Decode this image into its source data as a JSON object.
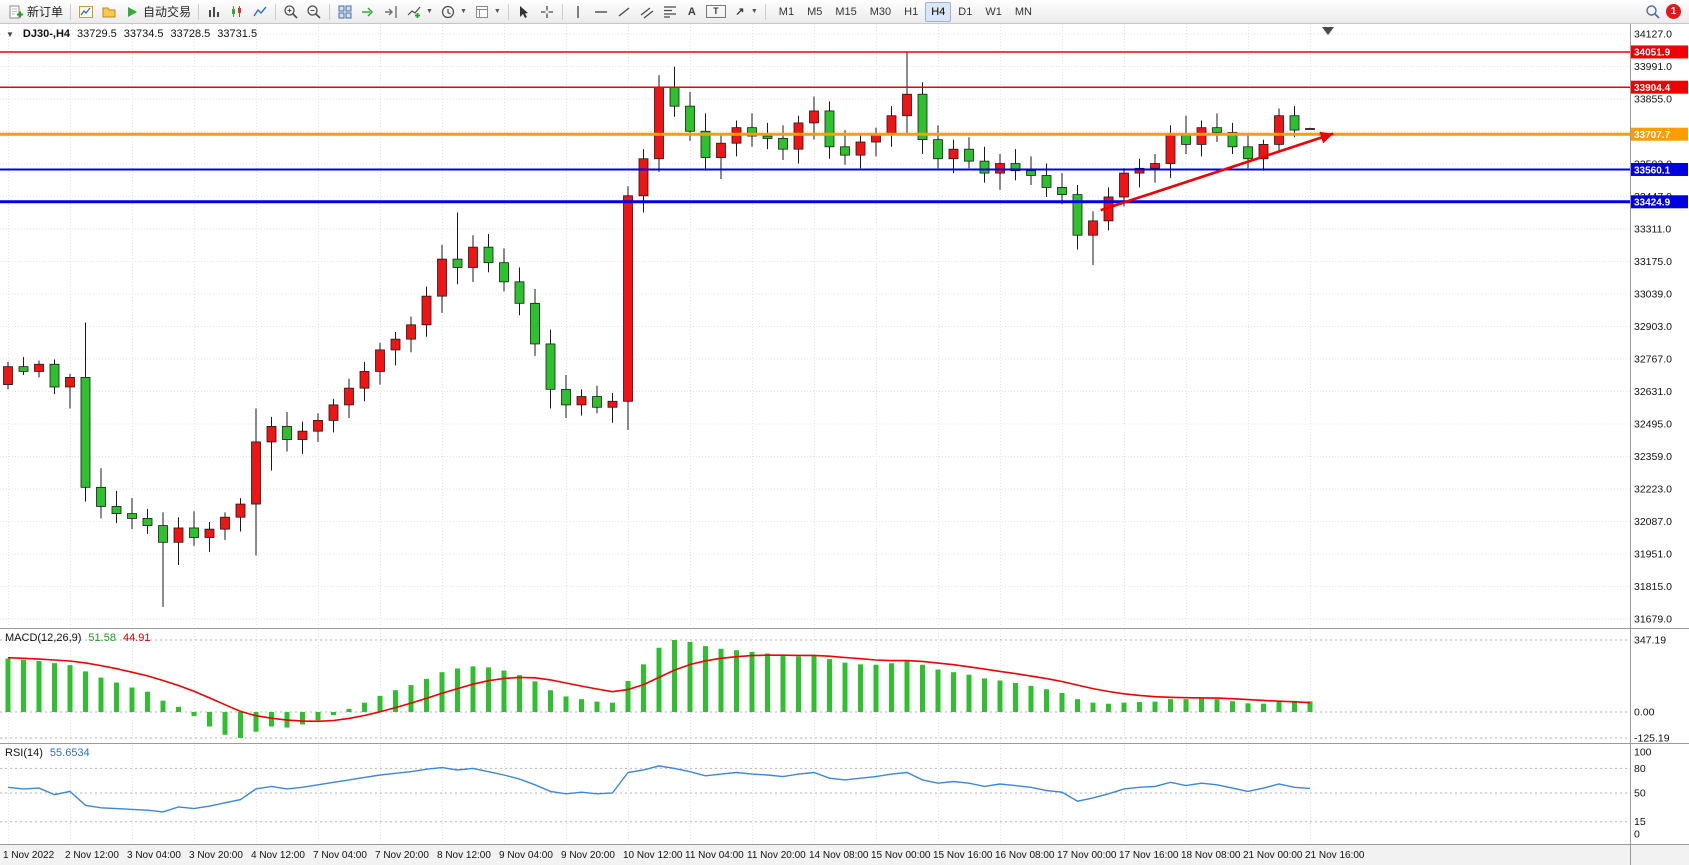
{
  "toolbar": {
    "new_order_label": "新订单",
    "auto_trading_label": "自动交易",
    "timeframes": [
      "M1",
      "M5",
      "M15",
      "M30",
      "H1",
      "H4",
      "D1",
      "W1",
      "MN"
    ],
    "active_timeframe": "H4",
    "notification_count": "1"
  },
  "chart_header": {
    "symbol_period": "DJ30-,H4",
    "open": "33729.5",
    "high": "33734.5",
    "low": "33728.5",
    "close": "33731.5"
  },
  "chart_data": {
    "type": "candlestick",
    "symbol": "DJ30-",
    "timeframe": "H4",
    "color_note": "red bars = up, green bars = down",
    "y_axis": {
      "tick_step": 136,
      "ticks": [
        34127,
        33991,
        33855,
        33719,
        33583,
        33447,
        33311,
        33175,
        33039,
        32903,
        32767,
        32631,
        32495,
        32359,
        32223,
        32087,
        31951,
        31815,
        31679
      ]
    },
    "x_ticks": [
      "1 Nov 2022",
      "2 Nov 12:00",
      "3 Nov 04:00",
      "3 Nov 20:00",
      "4 Nov 12:00",
      "7 Nov 04:00",
      "7 Nov 20:00",
      "8 Nov 12:00",
      "9 Nov 04:00",
      "9 Nov 20:00",
      "10 Nov 12:00",
      "11 Nov 04:00",
      "11 Nov 20:00",
      "14 Nov 08:00",
      "15 Nov 00:00",
      "15 Nov 16:00",
      "16 Nov 08:00",
      "17 Nov 00:00",
      "17 Nov 16:00",
      "18 Nov 08:00",
      "21 Nov 00:00",
      "21 Nov 16:00"
    ],
    "x_tick_every": 4,
    "candles": [
      [
        32660,
        32755,
        32640,
        32735
      ],
      [
        32735,
        32775,
        32700,
        32715
      ],
      [
        32715,
        32760,
        32690,
        32745
      ],
      [
        32745,
        32765,
        32620,
        32650
      ],
      [
        32650,
        32705,
        32560,
        32690
      ],
      [
        32690,
        32920,
        32170,
        32230
      ],
      [
        32230,
        32310,
        32100,
        32150
      ],
      [
        32150,
        32215,
        32080,
        32120
      ],
      [
        32120,
        32185,
        32055,
        32100
      ],
      [
        32100,
        32140,
        32035,
        32070
      ],
      [
        32070,
        32125,
        31730,
        32000
      ],
      [
        32000,
        32105,
        31905,
        32060
      ],
      [
        32060,
        32130,
        31985,
        32020
      ],
      [
        32020,
        32085,
        31960,
        32055
      ],
      [
        32055,
        32125,
        32010,
        32105
      ],
      [
        32105,
        32185,
        32045,
        32160
      ],
      [
        32160,
        32560,
        31945,
        32420
      ],
      [
        32420,
        32525,
        32300,
        32485
      ],
      [
        32485,
        32545,
        32380,
        32430
      ],
      [
        32430,
        32505,
        32370,
        32465
      ],
      [
        32465,
        32540,
        32420,
        32510
      ],
      [
        32510,
        32600,
        32460,
        32575
      ],
      [
        32575,
        32685,
        32520,
        32645
      ],
      [
        32645,
        32755,
        32590,
        32715
      ],
      [
        32715,
        32835,
        32660,
        32805
      ],
      [
        32805,
        32880,
        32740,
        32850
      ],
      [
        32850,
        32945,
        32795,
        32910
      ],
      [
        32910,
        33070,
        32860,
        33030
      ],
      [
        33030,
        33245,
        32960,
        33185
      ],
      [
        33185,
        33380,
        33080,
        33150
      ],
      [
        33150,
        33285,
        33090,
        33235
      ],
      [
        33235,
        33290,
        33130,
        33170
      ],
      [
        33170,
        33230,
        33050,
        33090
      ],
      [
        33090,
        33150,
        32950,
        33000
      ],
      [
        33000,
        33060,
        32780,
        32830
      ],
      [
        32830,
        32890,
        32560,
        32640
      ],
      [
        32640,
        32700,
        32520,
        32575
      ],
      [
        32575,
        32640,
        32530,
        32610
      ],
      [
        32610,
        32655,
        32540,
        32565
      ],
      [
        32565,
        32625,
        32500,
        32590
      ],
      [
        32590,
        33490,
        32470,
        33450
      ],
      [
        33450,
        33645,
        33380,
        33605
      ],
      [
        33605,
        33955,
        33550,
        33905
      ],
      [
        33905,
        33990,
        33780,
        33825
      ],
      [
        33825,
        33885,
        33680,
        33720
      ],
      [
        33720,
        33795,
        33555,
        33610
      ],
      [
        33610,
        33705,
        33520,
        33670
      ],
      [
        33670,
        33765,
        33615,
        33735
      ],
      [
        33735,
        33795,
        33655,
        33700
      ],
      [
        33700,
        33755,
        33645,
        33690
      ],
      [
        33690,
        33745,
        33600,
        33645
      ],
      [
        33645,
        33785,
        33585,
        33755
      ],
      [
        33755,
        33865,
        33685,
        33805
      ],
      [
        33805,
        33845,
        33605,
        33655
      ],
      [
        33655,
        33725,
        33580,
        33620
      ],
      [
        33620,
        33705,
        33565,
        33675
      ],
      [
        33675,
        33735,
        33615,
        33705
      ],
      [
        33705,
        33825,
        33655,
        33785
      ],
      [
        33785,
        34050,
        33705,
        33875
      ],
      [
        33875,
        33925,
        33625,
        33685
      ],
      [
        33685,
        33745,
        33565,
        33605
      ],
      [
        33605,
        33685,
        33545,
        33645
      ],
      [
        33645,
        33695,
        33565,
        33595
      ],
      [
        33595,
        33655,
        33505,
        33545
      ],
      [
        33545,
        33625,
        33475,
        33585
      ],
      [
        33585,
        33645,
        33515,
        33555
      ],
      [
        33555,
        33615,
        33495,
        33535
      ],
      [
        33535,
        33585,
        33445,
        33485
      ],
      [
        33485,
        33545,
        33415,
        33455
      ],
      [
        33455,
        33495,
        33225,
        33285
      ],
      [
        33285,
        33385,
        33160,
        33345
      ],
      [
        33345,
        33485,
        33305,
        33445
      ],
      [
        33445,
        33565,
        33405,
        33545
      ],
      [
        33545,
        33605,
        33485,
        33565
      ],
      [
        33565,
        33625,
        33505,
        33585
      ],
      [
        33585,
        33745,
        33525,
        33705
      ],
      [
        33705,
        33785,
        33625,
        33665
      ],
      [
        33665,
        33765,
        33615,
        33735
      ],
      [
        33735,
        33795,
        33675,
        33715
      ],
      [
        33715,
        33755,
        33625,
        33655
      ],
      [
        33655,
        33705,
        33565,
        33605
      ],
      [
        33605,
        33685,
        33555,
        33665
      ],
      [
        33665,
        33815,
        33635,
        33785
      ],
      [
        33785,
        33825,
        33695,
        33725
      ],
      [
        33729.5,
        33734.5,
        33728.5,
        33731.5
      ]
    ],
    "hlines": [
      {
        "price": 34051.9,
        "label": "34051.9",
        "color": "#f00000",
        "width": 1.5
      },
      {
        "price": 33904.4,
        "label": "33904.4",
        "color": "#f00000",
        "width": 1.5
      },
      {
        "price": 33707.7,
        "label": "33707.7",
        "color": "#ff9c00",
        "width": 3
      },
      {
        "price": 33560.1,
        "label": "33560.1",
        "color": "#0000e0",
        "width": 2
      },
      {
        "price": 33424.9,
        "label": "33424.9",
        "color": "#0000e0",
        "width": 3
      }
    ],
    "trend_arrow": {
      "from_bar": 70.5,
      "from_price": 33390,
      "to_bar": 85.5,
      "to_price": 33710,
      "color": "#f00000"
    },
    "indicators": {
      "macd": {
        "label": "MACD(12,26,9)",
        "value_main": "51.58",
        "value_signal": "44.91",
        "scale_labels": [
          "347.19",
          "0.00",
          "-125.19"
        ],
        "scale_max": 347.19,
        "scale_min": -125.19,
        "hist_color": "#2ec12e",
        "signal_color": "#f00000",
        "histogram": [
          258,
          252,
          246,
          236,
          226,
          196,
          166,
          142,
          118,
          98,
          55,
          25,
          -20,
          -70,
          -110,
          -125.19,
          -95,
          -70,
          -75,
          -60,
          -40,
          -15,
          15,
          45,
          78,
          105,
          130,
          160,
          192,
          210,
          220,
          215,
          200,
          178,
          148,
          105,
          75,
          62,
          50,
          45,
          150,
          230,
          310,
          347.19,
          338,
          318,
          305,
          298,
          290,
          282,
          272,
          268,
          272,
          255,
          238,
          230,
          228,
          235,
          248,
          228,
          205,
          192,
          180,
          162,
          152,
          140,
          126,
          110,
          92,
          62,
          45,
          40,
          45,
          48,
          50,
          62,
          62,
          65,
          62,
          52,
          42,
          40,
          52,
          54,
          51.58
        ],
        "signal": [
          262,
          259,
          255,
          251,
          246,
          237,
          224,
          209,
          192,
          174,
          152,
          128,
          100,
          68,
          35,
          3,
          -18,
          -30,
          -39,
          -44,
          -45,
          -41,
          -31,
          -17,
          1,
          21,
          43,
          66,
          90,
          113,
          134,
          151,
          162,
          167,
          165,
          155,
          140,
          125,
          111,
          98,
          108,
          132,
          167,
          202,
          229,
          247,
          259,
          267,
          272,
          274,
          274,
          273,
          273,
          269,
          263,
          257,
          251,
          248,
          248,
          244,
          236,
          228,
          218,
          207,
          196,
          185,
          173,
          161,
          147,
          130,
          113,
          99,
          88,
          80,
          74,
          71,
          69,
          68,
          67,
          64,
          60,
          56,
          52,
          49,
          44.91
        ]
      },
      "rsi": {
        "label": "RSI(14)",
        "value": "55.6534",
        "levels": [
          80,
          50,
          15
        ],
        "scale_labels": [
          "100",
          "80",
          "50",
          "15",
          "0"
        ],
        "line_color": "#3a87de",
        "values": [
          57,
          55,
          56,
          48,
          52,
          35,
          32,
          31,
          30,
          29,
          27,
          33,
          31,
          34,
          38,
          42,
          55,
          58,
          55,
          57,
          60,
          63,
          66,
          69,
          72,
          74,
          76,
          79,
          81,
          78,
          80,
          76,
          72,
          67,
          60,
          52,
          49,
          51,
          49,
          50,
          75,
          78,
          83,
          80,
          76,
          71,
          73,
          75,
          73,
          72,
          70,
          73,
          75,
          68,
          66,
          68,
          70,
          73,
          75,
          66,
          62,
          64,
          62,
          58,
          61,
          59,
          57,
          53,
          51,
          40,
          44,
          49,
          55,
          57,
          58,
          63,
          59,
          62,
          60,
          56,
          52,
          56,
          61,
          57,
          55.65
        ]
      }
    },
    "colors": {
      "up": "#f01414",
      "down": "#2ec12e",
      "wick": "#1a1a1a",
      "grid": "#e4e4e4",
      "background": "#ffffff"
    }
  }
}
